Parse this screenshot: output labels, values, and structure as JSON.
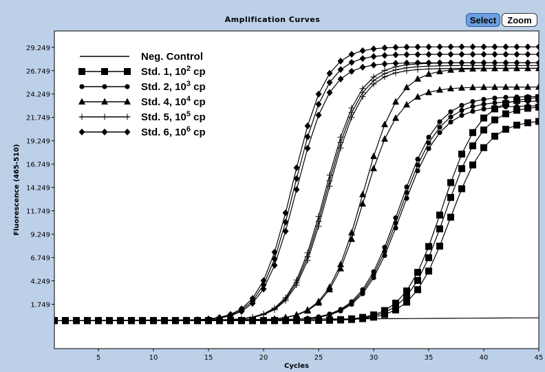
{
  "chart_data": {
    "type": "line",
    "title": "Amplification Curves",
    "xlabel": "Cycles",
    "ylabel": "Fluorescence (465-510)",
    "xlim": [
      1,
      45
    ],
    "ylim": [
      -3,
      31
    ],
    "x_ticks": [
      5,
      10,
      15,
      20,
      25,
      30,
      35,
      40,
      45
    ],
    "y_ticks": [
      1.749,
      4.249,
      6.749,
      9.249,
      11.749,
      14.249,
      16.749,
      19.249,
      21.749,
      24.249,
      26.749,
      29.249
    ],
    "y_tick_labels": [
      "1.749",
      "4.249",
      "6.749",
      "9.249",
      "11.749",
      "14.249",
      "16.749",
      "19.249",
      "21.749",
      "24.249",
      "26.749",
      "29.249"
    ],
    "legend_position": "top-left",
    "grid": false,
    "series": [
      {
        "name": "Neg. Control",
        "legend_main": "Neg. Control",
        "legend_sup": "",
        "legend_tail": "",
        "marker": "none",
        "replicates": 1,
        "baseline": 0.0,
        "plateau": 0.0,
        "midpoint": 0,
        "slope": 1,
        "drift_start": 0.0,
        "drift_end": 0.3
      },
      {
        "name": "Std. 1, 10² cp",
        "legend_main": "Std. 1, 10",
        "legend_sup": "2",
        "legend_tail": " cp",
        "marker": "square",
        "replicates": 3,
        "baseline": 0.0,
        "plateau": 23.0,
        "midpoint": 36.5,
        "slope": 1.7,
        "plateaus": [
          21.5,
          23.0,
          24.0
        ],
        "midpoints": [
          36.9,
          36.5,
          36.2
        ]
      },
      {
        "name": "Std. 2, 10³ cp",
        "legend_main": "Std. 2, 10",
        "legend_sup": "3",
        "legend_tail": " cp",
        "marker": "circle",
        "replicates": 3,
        "baseline": 0.0,
        "plateau": 23.5,
        "midpoint": 32.4,
        "slope": 1.8,
        "plateaus": [
          23.0,
          23.5,
          24.0
        ],
        "midpoints": [
          32.5,
          32.4,
          32.3
        ]
      },
      {
        "name": "Std. 4, 10⁴ cp",
        "legend_main": "Std. 4, 10",
        "legend_sup": "4",
        "legend_tail": " cp",
        "marker": "triangle",
        "replicates": 2,
        "baseline": 0.0,
        "plateau": 26.0,
        "midpoint": 29.0,
        "slope": 1.6,
        "plateaus": [
          25.0,
          27.0
        ],
        "midpoints": [
          29.0,
          29.0
        ]
      },
      {
        "name": "Std. 5, 10⁵ cp",
        "legend_main": "Std. 5, 10",
        "legend_sup": "5",
        "legend_tail": " cp",
        "marker": "plus",
        "replicates": 3,
        "baseline": 0.0,
        "plateau": 27.2,
        "midpoint": 25.7,
        "slope": 1.55,
        "plateaus": [
          27.0,
          27.3,
          27.6
        ],
        "midpoints": [
          25.8,
          25.7,
          25.6
        ]
      },
      {
        "name": "Std. 6, 10⁶ cp",
        "legend_main": "Std. 6, 10",
        "legend_sup": "6",
        "legend_tail": " cp",
        "marker": "diamond",
        "replicates": 3,
        "baseline": 0.0,
        "plateau": 28.5,
        "midpoint": 22.8,
        "slope": 1.5,
        "plateaus": [
          27.6,
          28.5,
          29.3
        ],
        "midpoints": [
          22.95,
          22.8,
          22.65
        ]
      }
    ]
  },
  "toolbar": {
    "select_label": "Select",
    "zoom_label": "Zoom"
  }
}
